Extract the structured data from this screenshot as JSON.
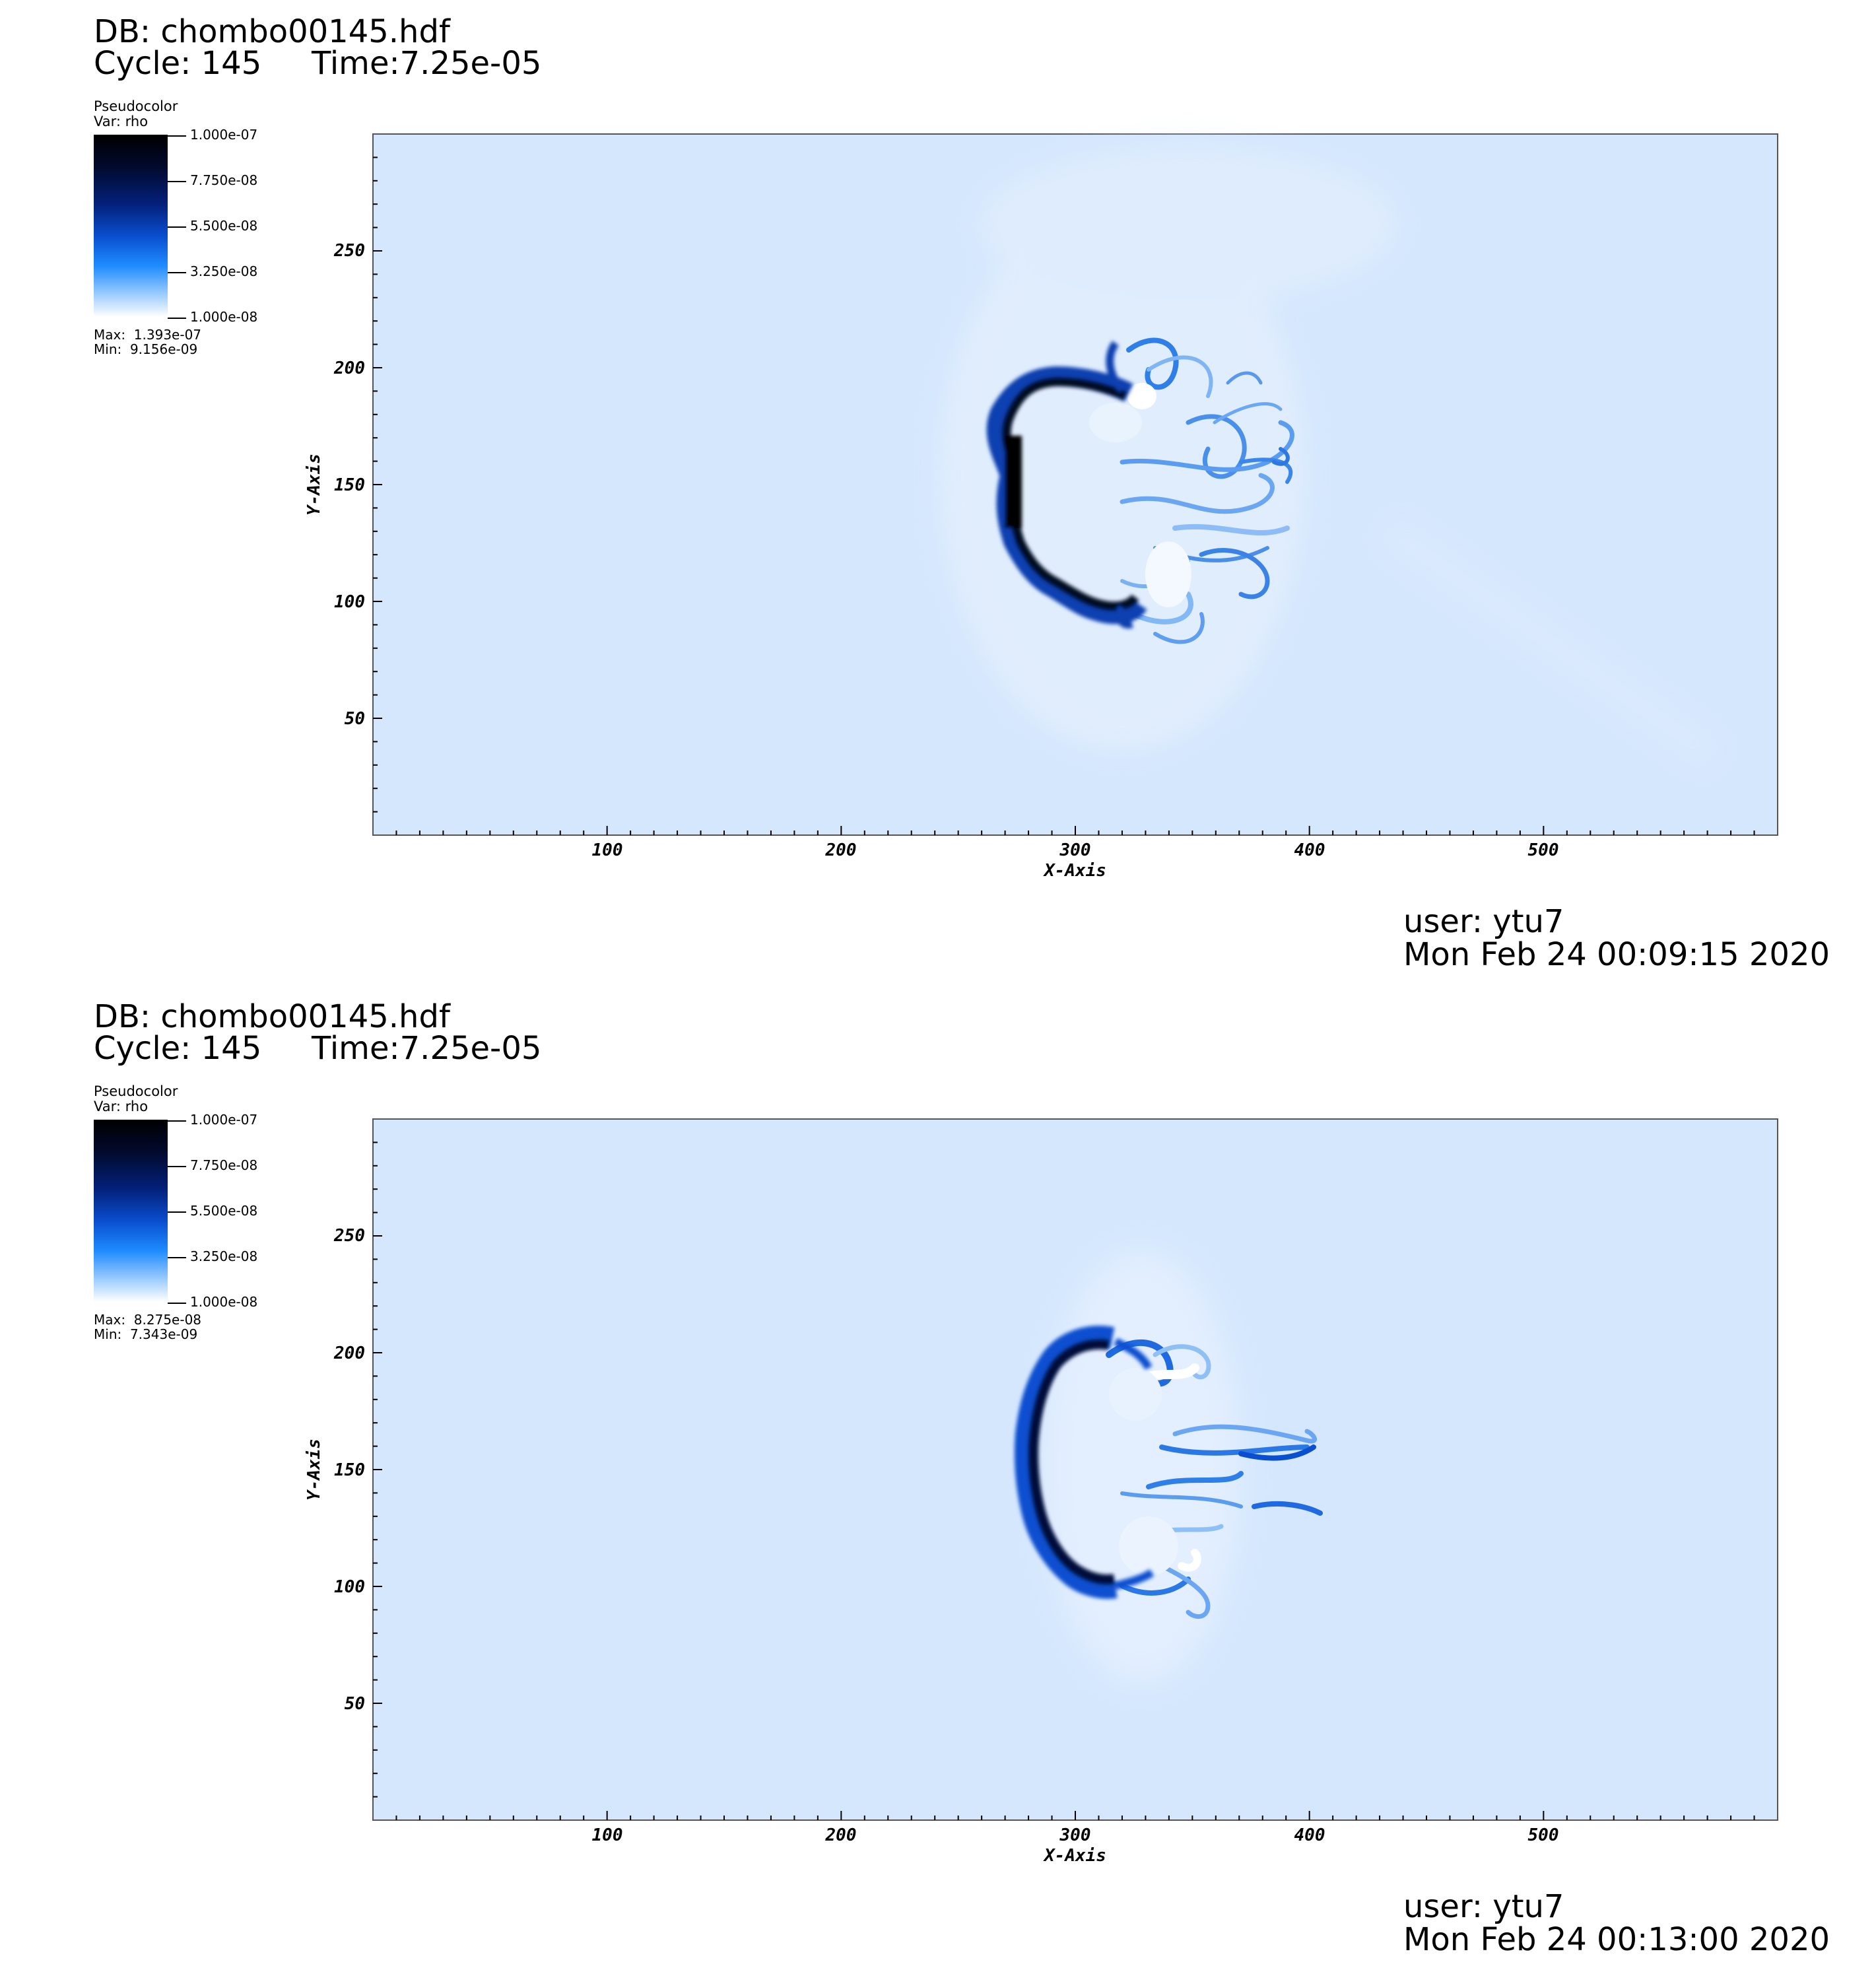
{
  "panels": [
    {
      "db": "DB: chombo00145.hdf",
      "cycle": "Cycle: 145",
      "time": "Time:7.25e-05",
      "legend": {
        "title": "Pseudocolor",
        "var": "Var: rho",
        "ticks": [
          "1.000e-07",
          "7.750e-08",
          "5.500e-08",
          "3.250e-08",
          "1.000e-08"
        ],
        "max": "Max:  1.393e-07",
        "min": "Min:  9.156e-09"
      },
      "axes": {
        "xlabel": "X-Axis",
        "ylabel": "Y-Axis",
        "xticks": [
          "100",
          "200",
          "300",
          "400",
          "500"
        ],
        "yticks": [
          "250",
          "200",
          "150",
          "100",
          "50"
        ]
      },
      "user": "user: ytu7",
      "date": "Mon Feb 24 00:09:15 2020"
    },
    {
      "db": "DB: chombo00145.hdf",
      "cycle": "Cycle: 145",
      "time": "Time:7.25e-05",
      "legend": {
        "title": "Pseudocolor",
        "var": "Var: rho",
        "ticks": [
          "1.000e-07",
          "7.750e-08",
          "5.500e-08",
          "3.250e-08",
          "1.000e-08"
        ],
        "max": "Max:  8.275e-08",
        "min": "Min:  7.343e-09"
      },
      "axes": {
        "xlabel": "X-Axis",
        "ylabel": "Y-Axis",
        "xticks": [
          "100",
          "200",
          "300",
          "400",
          "500"
        ],
        "yticks": [
          "250",
          "200",
          "150",
          "100",
          "50"
        ]
      },
      "user": "user: ytu7",
      "date": "Mon Feb 24 00:13:00 2020"
    }
  ],
  "colors": {
    "background_field": "#d4e7fd",
    "dense_front": "#000814",
    "mid_front": "#0a4fd0",
    "light_swirl": "#ffffff"
  }
}
